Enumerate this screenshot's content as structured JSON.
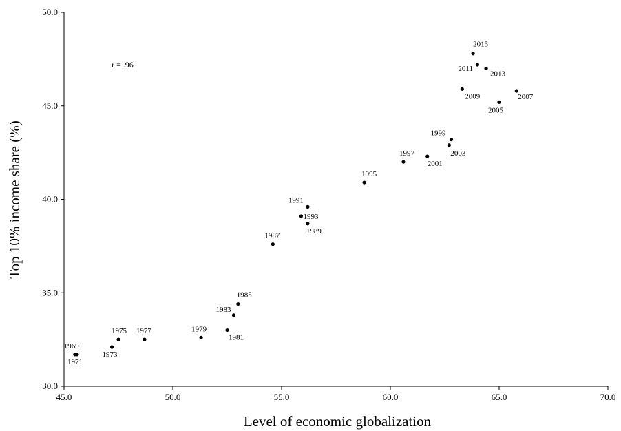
{
  "chart_data": {
    "type": "scatter",
    "xlabel": "Level of economic globalization",
    "ylabel": "Top 10% income share (%)",
    "annotation": "r = .96",
    "xlim": [
      45.0,
      70.0
    ],
    "ylim": [
      30.0,
      50.0
    ],
    "x_ticks": [
      "45.0",
      "50.0",
      "55.0",
      "60.0",
      "65.0",
      "70.0"
    ],
    "y_ticks": [
      "30.0",
      "35.0",
      "40.0",
      "45.0",
      "50.0"
    ],
    "grid": false,
    "points": [
      {
        "label": "1969",
        "x": 45.5,
        "y": 31.7
      },
      {
        "label": "1971",
        "x": 45.6,
        "y": 31.7
      },
      {
        "label": "1973",
        "x": 47.2,
        "y": 32.1
      },
      {
        "label": "1975",
        "x": 47.5,
        "y": 32.5
      },
      {
        "label": "1977",
        "x": 48.7,
        "y": 32.5
      },
      {
        "label": "1979",
        "x": 51.3,
        "y": 32.6
      },
      {
        "label": "1981",
        "x": 52.5,
        "y": 33.0
      },
      {
        "label": "1983",
        "x": 52.8,
        "y": 33.8
      },
      {
        "label": "1985",
        "x": 53.0,
        "y": 34.4
      },
      {
        "label": "1987",
        "x": 54.6,
        "y": 37.6
      },
      {
        "label": "1989",
        "x": 56.2,
        "y": 38.7
      },
      {
        "label": "1991",
        "x": 56.2,
        "y": 39.6
      },
      {
        "label": "1993",
        "x": 55.9,
        "y": 39.1
      },
      {
        "label": "1995",
        "x": 58.8,
        "y": 40.9
      },
      {
        "label": "1997",
        "x": 60.6,
        "y": 42.0
      },
      {
        "label": "1999",
        "x": 62.8,
        "y": 43.2
      },
      {
        "label": "2001",
        "x": 61.7,
        "y": 42.3
      },
      {
        "label": "2003",
        "x": 62.7,
        "y": 42.9
      },
      {
        "label": "2005",
        "x": 65.0,
        "y": 45.2
      },
      {
        "label": "2007",
        "x": 65.8,
        "y": 45.8
      },
      {
        "label": "2009",
        "x": 63.3,
        "y": 45.9
      },
      {
        "label": "2011",
        "x": 64.0,
        "y": 47.2
      },
      {
        "label": "2013",
        "x": 64.4,
        "y": 47.0
      },
      {
        "label": "2015",
        "x": 63.8,
        "y": 47.8
      }
    ]
  }
}
